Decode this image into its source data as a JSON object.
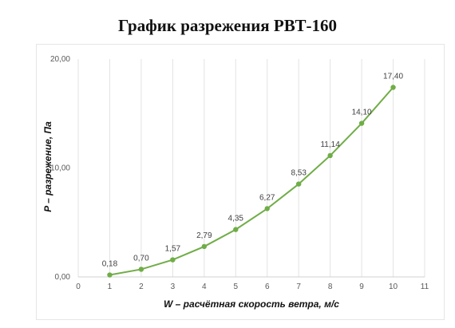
{
  "chart_data": {
    "type": "line",
    "title": "График разрежения РВТ-160",
    "xlabel": "W – расчётная скорость ветра, м/с",
    "ylabel": "P – разрежение, Па",
    "xlim": [
      0,
      11
    ],
    "ylim": [
      0,
      20
    ],
    "x_ticks": [
      "0",
      "1",
      "2",
      "3",
      "4",
      "5",
      "6",
      "7",
      "8",
      "9",
      "10",
      "11"
    ],
    "y_ticks": [
      "0,00",
      "10,00",
      "20,00"
    ],
    "grid": "vertical",
    "legend": "none",
    "series": [
      {
        "color": "#70ad47",
        "x": [
          1,
          2,
          3,
          4,
          5,
          6,
          7,
          8,
          9,
          10
        ],
        "y": [
          0.18,
          0.7,
          1.57,
          2.79,
          4.35,
          6.27,
          8.53,
          11.14,
          14.1,
          17.4
        ],
        "labels": [
          "0,18",
          "0,70",
          "1,57",
          "2,79",
          "4,35",
          "6,27",
          "8,53",
          "11,14",
          "14,10",
          "17,40"
        ]
      }
    ]
  }
}
